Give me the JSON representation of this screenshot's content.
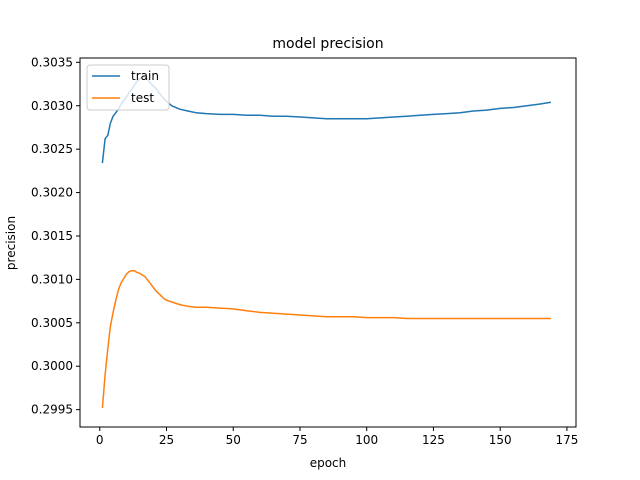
{
  "chart_data": {
    "type": "line",
    "title": "model precision",
    "xlabel": "epoch",
    "ylabel": "precision",
    "xlim": [
      -7.4,
      178.4
    ],
    "ylim": [
      0.2993,
      0.30355
    ],
    "xticks": [
      0,
      25,
      50,
      75,
      100,
      125,
      150,
      175
    ],
    "yticks": [
      0.2995,
      0.3,
      0.3005,
      0.301,
      0.3015,
      0.302,
      0.3025,
      0.303,
      0.3035
    ],
    "ytick_labels": [
      "0.2995",
      "0.3000",
      "0.3005",
      "0.3010",
      "0.3015",
      "0.3020",
      "0.3025",
      "0.3030",
      "0.3035"
    ],
    "grid": false,
    "legend_position": "upper-left",
    "series": [
      {
        "name": "train",
        "color": "#1f77b4",
        "x": [
          1,
          2,
          3,
          4,
          5,
          6,
          7,
          8,
          9,
          10,
          11,
          12,
          13,
          14,
          15,
          16,
          17,
          18,
          19,
          20,
          21,
          22,
          23,
          24,
          25,
          27,
          30,
          33,
          36,
          40,
          45,
          50,
          55,
          60,
          65,
          70,
          75,
          80,
          85,
          90,
          95,
          100,
          105,
          110,
          115,
          120,
          125,
          130,
          135,
          140,
          145,
          150,
          155,
          160,
          165,
          169
        ],
        "values": [
          0.30234,
          0.30262,
          0.30266,
          0.3028,
          0.30288,
          0.30292,
          0.30296,
          0.30302,
          0.30306,
          0.3031,
          0.30315,
          0.30319,
          0.30324,
          0.30328,
          0.30331,
          0.30333,
          0.30334,
          0.3033,
          0.30326,
          0.30323,
          0.3032,
          0.30316,
          0.30312,
          0.30308,
          0.30305,
          0.303,
          0.30296,
          0.30294,
          0.30292,
          0.30291,
          0.3029,
          0.3029,
          0.30289,
          0.30289,
          0.30288,
          0.30288,
          0.30287,
          0.30286,
          0.30285,
          0.30285,
          0.30285,
          0.30285,
          0.30286,
          0.30287,
          0.30288,
          0.30289,
          0.3029,
          0.30291,
          0.30292,
          0.30294,
          0.30295,
          0.30297,
          0.30298,
          0.303,
          0.30302,
          0.30304
        ]
      },
      {
        "name": "test",
        "color": "#ff7f0e",
        "x": [
          1,
          2,
          3,
          4,
          5,
          6,
          7,
          8,
          9,
          10,
          11,
          12,
          13,
          14,
          15,
          16,
          17,
          18,
          19,
          20,
          21,
          22,
          23,
          24,
          25,
          27,
          30,
          33,
          36,
          40,
          45,
          50,
          55,
          60,
          65,
          70,
          75,
          80,
          85,
          90,
          95,
          100,
          105,
          110,
          115,
          120,
          125,
          130,
          135,
          140,
          145,
          150,
          155,
          160,
          165,
          169
        ],
        "values": [
          0.29952,
          0.2999,
          0.3002,
          0.30046,
          0.30062,
          0.30076,
          0.30088,
          0.30096,
          0.30101,
          0.30106,
          0.30109,
          0.3011,
          0.3011,
          0.30108,
          0.30107,
          0.30105,
          0.30103,
          0.30099,
          0.30095,
          0.30091,
          0.30087,
          0.30084,
          0.30081,
          0.30078,
          0.30076,
          0.30074,
          0.30071,
          0.30069,
          0.30068,
          0.30068,
          0.30067,
          0.30066,
          0.30064,
          0.30062,
          0.30061,
          0.3006,
          0.30059,
          0.30058,
          0.30057,
          0.30057,
          0.30057,
          0.30056,
          0.30056,
          0.30056,
          0.30055,
          0.30055,
          0.30055,
          0.30055,
          0.30055,
          0.30055,
          0.30055,
          0.30055,
          0.30055,
          0.30055,
          0.30055,
          0.30055
        ]
      }
    ]
  }
}
